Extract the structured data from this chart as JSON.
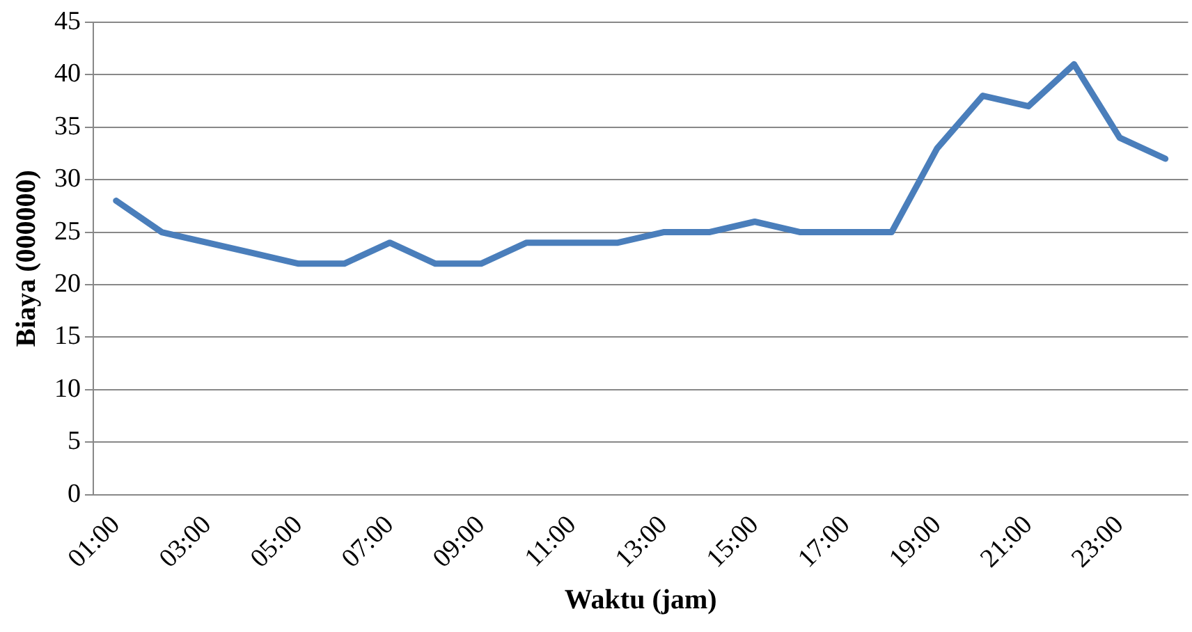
{
  "chart_data": {
    "type": "line",
    "xlabel": "Waktu (jam)",
    "ylabel": "Biaya (000000)",
    "categories": [
      "01:00",
      null,
      "03:00",
      null,
      "05:00",
      null,
      "07:00",
      null,
      "09:00",
      null,
      "11:00",
      null,
      "13:00",
      null,
      "15:00",
      null,
      "17:00",
      null,
      "19:00",
      null,
      "21:00",
      null,
      "23:00",
      null
    ],
    "series": [
      {
        "color": "#4a7ebb",
        "values": [
          28,
          25,
          24,
          23,
          22,
          22,
          24,
          22,
          22,
          24,
          24,
          24,
          25,
          25,
          26,
          25,
          25,
          25,
          33,
          38,
          37,
          41,
          34,
          32
        ]
      }
    ],
    "ylim": [
      0,
      45
    ],
    "yticks": [
      0,
      5,
      10,
      15,
      20,
      25,
      30,
      35,
      40,
      45
    ],
    "grid": "y",
    "legend": false,
    "marker": "none",
    "line_style": "solid"
  }
}
